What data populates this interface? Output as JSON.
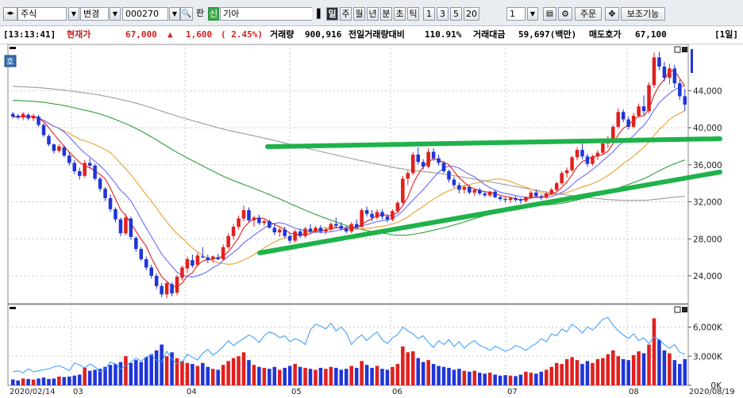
{
  "toolbar": {
    "market_select": "주식",
    "change_select": "변경",
    "code_input": "000270",
    "shin_badge": "신",
    "name_input": "기아",
    "period_buttons": [
      "일",
      "주",
      "월",
      "년",
      "분",
      "초",
      "틱"
    ],
    "active_period": "일",
    "interval_buttons": [
      "1",
      "3",
      "5",
      "20"
    ],
    "interval_value": "1",
    "order_button": "주문",
    "aux_button": "보조기능",
    "pan_label": "판"
  },
  "info": {
    "time": "[13:13:41]",
    "price_label": "현재가",
    "price": "67,000",
    "change_arrow": "▲",
    "change": "1,600",
    "change_pct": "( 2.45%)",
    "volume_label": "거래량",
    "volume": "900,916",
    "prev_vol_ratio_label": "전일거래량대비",
    "prev_vol_ratio": "110.91%",
    "amount_label": "거래대금",
    "amount": "59,697(백만)",
    "ask_label": "매도호가",
    "ask": "67,100",
    "period_tag": "[1일]"
  },
  "colors": {
    "up": "#e0201e",
    "down": "#1f35d8",
    "ma5": "#e02020",
    "ma10": "#6a6aff",
    "ma20": "#e9a030",
    "ma60": "#2e9e3a",
    "ma120": "#9a9a9a",
    "trend": "#1fb24a",
    "volume_line": "#3399ff"
  },
  "chart_data": [
    {
      "type": "candlestick",
      "x_start": "2020/02/14",
      "x_end": "2020/08/19",
      "month_ticks": [
        "03",
        "04",
        "05",
        "06",
        "07",
        "08"
      ],
      "y_ticks": [
        24000,
        28000,
        32000,
        36000,
        40000,
        44000
      ],
      "ylim": [
        21000,
        49000
      ],
      "grid": true,
      "marker_label": "호",
      "candles": [
        [
          41500,
          41700,
          41000,
          41200
        ],
        [
          41300,
          41500,
          40900,
          41100
        ],
        [
          41100,
          41700,
          40800,
          41500
        ],
        [
          41400,
          41600,
          40800,
          41000
        ],
        [
          41000,
          41500,
          40700,
          41300
        ],
        [
          41200,
          41400,
          40100,
          40300
        ],
        [
          40300,
          40500,
          39000,
          39200
        ],
        [
          39100,
          39300,
          38000,
          38200
        ],
        [
          38200,
          38300,
          37200,
          37500
        ],
        [
          37500,
          38200,
          37300,
          38000
        ],
        [
          37900,
          38100,
          36800,
          37000
        ],
        [
          37000,
          37400,
          35900,
          36200
        ],
        [
          36200,
          36500,
          35000,
          35300
        ],
        [
          35300,
          35700,
          34400,
          34800
        ],
        [
          34800,
          36500,
          34600,
          36200
        ],
        [
          36200,
          36700,
          35600,
          35900
        ],
        [
          35900,
          36100,
          34300,
          34500
        ],
        [
          34500,
          34700,
          33100,
          33400
        ],
        [
          33400,
          33600,
          32100,
          32400
        ],
        [
          32400,
          32800,
          30900,
          31200
        ],
        [
          31200,
          31400,
          29800,
          30100
        ],
        [
          30100,
          30300,
          28300,
          28600
        ],
        [
          28600,
          30700,
          28400,
          30300
        ],
        [
          30200,
          30400,
          27900,
          28200
        ],
        [
          28100,
          28300,
          26600,
          26900
        ],
        [
          26900,
          27100,
          25600,
          25800
        ],
        [
          25800,
          26100,
          24600,
          24900
        ],
        [
          24900,
          25200,
          23700,
          24000
        ],
        [
          24000,
          24300,
          22600,
          22900
        ],
        [
          22900,
          23200,
          21700,
          22000
        ],
        [
          22000,
          23400,
          21600,
          23200
        ],
        [
          23100,
          23300,
          21800,
          22100
        ],
        [
          22200,
          24100,
          21900,
          23900
        ],
        [
          23800,
          25100,
          23500,
          24900
        ],
        [
          24800,
          26100,
          24300,
          25800
        ],
        [
          25700,
          26300,
          24900,
          25100
        ],
        [
          25200,
          26500,
          25000,
          26200
        ],
        [
          26100,
          27100,
          25900,
          26000
        ],
        [
          26000,
          26300,
          25400,
          25700
        ],
        [
          25800,
          26200,
          25400,
          26100
        ],
        [
          26000,
          26400,
          25700,
          25800
        ],
        [
          25800,
          27400,
          25600,
          27100
        ],
        [
          27100,
          28600,
          26900,
          28300
        ],
        [
          28300,
          29600,
          27900,
          29300
        ],
        [
          29300,
          30500,
          29000,
          30200
        ],
        [
          30200,
          31600,
          29900,
          31100
        ],
        [
          31100,
          31400,
          29800,
          30000
        ],
        [
          30000,
          30500,
          29300,
          30300
        ],
        [
          30300,
          30600,
          29500,
          29700
        ],
        [
          29700,
          30100,
          29400,
          29900
        ],
        [
          29900,
          30100,
          29100,
          29200
        ],
        [
          29200,
          29600,
          28400,
          28700
        ],
        [
          28700,
          29200,
          28200,
          29000
        ],
        [
          29000,
          29300,
          28100,
          28300
        ],
        [
          28300,
          28500,
          27500,
          27800
        ],
        [
          27800,
          29000,
          27600,
          28800
        ],
        [
          28800,
          29100,
          28100,
          28300
        ],
        [
          28300,
          29300,
          28100,
          29100
        ],
        [
          29100,
          29600,
          28600,
          28800
        ],
        [
          28800,
          29400,
          28600,
          29200
        ],
        [
          29200,
          29500,
          28600,
          28800
        ],
        [
          28800,
          29200,
          28500,
          29000
        ],
        [
          29000,
          29800,
          28800,
          29600
        ],
        [
          29600,
          30300,
          29200,
          29400
        ],
        [
          29400,
          29800,
          28900,
          29100
        ],
        [
          29100,
          29400,
          28600,
          28800
        ],
        [
          28800,
          29800,
          28600,
          29600
        ],
        [
          29600,
          30100,
          29100,
          29300
        ],
        [
          29300,
          31300,
          29200,
          31100
        ],
        [
          31100,
          31500,
          30400,
          30700
        ],
        [
          30700,
          31100,
          29900,
          30300
        ],
        [
          30300,
          31200,
          30100,
          30900
        ],
        [
          30900,
          31200,
          30100,
          30400
        ],
        [
          30400,
          30700,
          29800,
          30100
        ],
        [
          30100,
          31200,
          29900,
          31000
        ],
        [
          31000,
          32100,
          30800,
          31900
        ],
        [
          31900,
          34800,
          31700,
          34500
        ],
        [
          34500,
          35400,
          33800,
          35100
        ],
        [
          35100,
          37400,
          34900,
          37100
        ],
        [
          37100,
          37900,
          36000,
          36300
        ],
        [
          36300,
          36600,
          35500,
          35800
        ],
        [
          35800,
          37800,
          35600,
          37400
        ],
        [
          37400,
          37800,
          36400,
          36700
        ],
        [
          36700,
          37100,
          35900,
          36200
        ],
        [
          36200,
          36400,
          35100,
          35300
        ],
        [
          35300,
          35500,
          34100,
          34400
        ],
        [
          34400,
          34700,
          33500,
          33800
        ],
        [
          33800,
          34100,
          32900,
          33300
        ],
        [
          33300,
          33800,
          32900,
          33600
        ],
        [
          33600,
          33800,
          32800,
          33000
        ],
        [
          33000,
          33400,
          32600,
          33300
        ],
        [
          33300,
          33500,
          32700,
          32900
        ],
        [
          32900,
          33100,
          32500,
          32700
        ],
        [
          32700,
          33200,
          32500,
          33100
        ],
        [
          33100,
          33300,
          32400,
          32500
        ],
        [
          32500,
          32700,
          32100,
          32300
        ],
        [
          32300,
          32500,
          31900,
          32200
        ],
        [
          32200,
          32500,
          31900,
          32400
        ],
        [
          32400,
          32600,
          32000,
          32200
        ],
        [
          32200,
          32400,
          31800,
          32100
        ],
        [
          32100,
          32600,
          31900,
          32500
        ],
        [
          32500,
          33200,
          32300,
          33000
        ],
        [
          33000,
          33300,
          32400,
          32600
        ],
        [
          32600,
          32800,
          32200,
          32500
        ],
        [
          32500,
          33100,
          32300,
          32900
        ],
        [
          32900,
          33500,
          32700,
          33300
        ],
        [
          33300,
          34200,
          33100,
          34000
        ],
        [
          34000,
          35300,
          33800,
          35100
        ],
        [
          35100,
          35700,
          34600,
          35400
        ],
        [
          35400,
          37000,
          35200,
          36800
        ],
        [
          36800,
          37900,
          36500,
          37600
        ],
        [
          37600,
          38300,
          36600,
          36900
        ],
        [
          36900,
          37200,
          35800,
          36100
        ],
        [
          36100,
          37100,
          35900,
          36900
        ],
        [
          36900,
          37600,
          36500,
          37300
        ],
        [
          37300,
          38600,
          37100,
          38300
        ],
        [
          38300,
          39100,
          37800,
          38700
        ],
        [
          38700,
          40300,
          38500,
          40100
        ],
        [
          40100,
          42100,
          39900,
          41700
        ],
        [
          41700,
          42000,
          40600,
          40900
        ],
        [
          40900,
          41200,
          39800,
          40100
        ],
        [
          40100,
          41600,
          39900,
          41300
        ],
        [
          41300,
          42600,
          41100,
          42300
        ],
        [
          42300,
          43500,
          41400,
          41800
        ],
        [
          41800,
          44900,
          41600,
          44600
        ],
        [
          44600,
          48100,
          44300,
          47600
        ],
        [
          47600,
          48200,
          46200,
          46600
        ],
        [
          46600,
          47100,
          45000,
          45400
        ],
        [
          45400,
          46900,
          44700,
          46400
        ],
        [
          46400,
          46800,
          44300,
          44800
        ],
        [
          44800,
          45200,
          43000,
          43400
        ],
        [
          43400,
          44200,
          41800,
          42500
        ]
      ]
    },
    {
      "type": "bar",
      "ylim": [
        0,
        8000
      ],
      "y_ticks_labels": [
        "6,000K",
        "3,000K",
        "0K"
      ],
      "values": [
        600,
        500,
        700,
        650,
        600,
        700,
        800,
        650,
        700,
        900,
        850,
        900,
        1000,
        1100,
        1800,
        1500,
        1600,
        1700,
        1900,
        2100,
        2200,
        2400,
        3000,
        2300,
        2600,
        2400,
        2900,
        3200,
        3600,
        4200,
        3000,
        3400,
        2800,
        2500,
        2300,
        2200,
        2000,
        2300,
        1900,
        1700,
        1600,
        2100,
        2500,
        2800,
        3000,
        3400,
        2600,
        2100,
        1900,
        1800,
        1700,
        1900,
        1600,
        1800,
        2000,
        2200,
        1900,
        1800,
        1700,
        1600,
        1800,
        1700,
        1900,
        1800,
        1600,
        1700,
        2000,
        1800,
        2500,
        2100,
        1800,
        2000,
        1700,
        1600,
        1900,
        2200,
        4000,
        3400,
        3500,
        2800,
        2400,
        2600,
        2200,
        2000,
        1900,
        1800,
        1600,
        1700,
        1500,
        1400,
        1500,
        1300,
        1200,
        1300,
        1100,
        1000,
        1050,
        1000,
        950,
        1100,
        1400,
        1300,
        1200,
        1400,
        1600,
        1900,
        2300,
        2200,
        2700,
        2900,
        2600,
        2200,
        2500,
        2300,
        2700,
        2800,
        3200,
        3600,
        3000,
        2700,
        2600,
        3100,
        3500,
        3300,
        4200,
        6900,
        4700,
        3600,
        3300,
        2600,
        2200,
        2700
      ],
      "line": [
        1400,
        1500,
        1300,
        1700,
        1400,
        1500,
        1600,
        1700,
        1900,
        2000,
        1800,
        1500,
        2300,
        2100,
        1800,
        2200,
        1900,
        1400,
        1600,
        2400,
        2200,
        1700,
        2000,
        2400,
        2800,
        2500,
        2900,
        3100,
        2600,
        2400,
        3500,
        2700,
        2200,
        2400,
        3200,
        2900,
        2600,
        3300,
        3700,
        3100,
        3500,
        4000,
        4600,
        4100,
        4500,
        4800,
        5200,
        4900,
        4400,
        5100,
        5500,
        5300,
        4900,
        5100,
        4500,
        4800,
        4600,
        4200,
        5700,
        6300,
        6100,
        5800,
        6400,
        5600,
        6000,
        5400,
        4200,
        4800,
        5200,
        4600,
        5100,
        5500,
        4700,
        4300,
        4900,
        5200,
        6000,
        5600,
        5300,
        4800,
        5100,
        4400,
        3900,
        4600,
        4200,
        4700,
        4000,
        4500,
        3800,
        4300,
        4600,
        4100,
        3900,
        3600,
        4000,
        3800,
        3500,
        3700,
        4100,
        3900,
        3600,
        4000,
        4300,
        4800,
        4500,
        5300,
        5100,
        5800,
        5500,
        6300,
        5900,
        5400,
        6000,
        5700,
        6200,
        6800,
        7000,
        6200,
        5600,
        5200,
        4800,
        5300,
        4600,
        4900,
        4300,
        5000,
        4700,
        4200,
        3800,
        4200,
        3400,
        3200
      ]
    }
  ],
  "x_labels": {
    "start": "2020/02/14",
    "end": "2020/08/19"
  }
}
